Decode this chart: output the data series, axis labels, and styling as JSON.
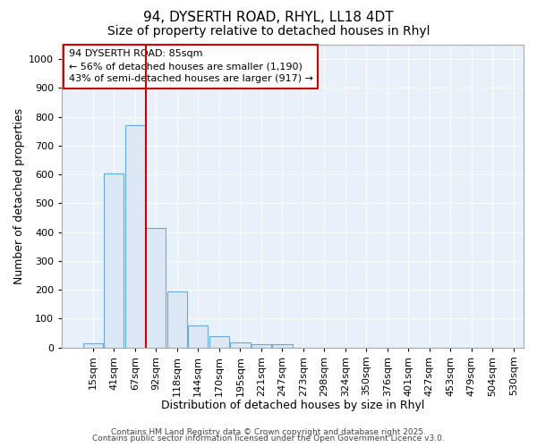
{
  "title1": "94, DYSERTH ROAD, RHYL, LL18 4DT",
  "title2": "Size of property relative to detached houses in Rhyl",
  "xlabel": "Distribution of detached houses by size in Rhyl",
  "ylabel": "Number of detached properties",
  "bin_labels": [
    "15sqm",
    "41sqm",
    "67sqm",
    "92sqm",
    "118sqm",
    "144sqm",
    "170sqm",
    "195sqm",
    "221sqm",
    "247sqm",
    "273sqm",
    "298sqm",
    "324sqm",
    "350sqm",
    "376sqm",
    "401sqm",
    "427sqm",
    "453sqm",
    "479sqm",
    "504sqm",
    "530sqm"
  ],
  "bar_values": [
    15,
    605,
    770,
    415,
    195,
    78,
    40,
    18,
    12,
    12,
    0,
    0,
    0,
    0,
    0,
    0,
    0,
    0,
    0,
    0
  ],
  "bar_color": "#dce8f5",
  "bar_edgecolor": "#6aaad4",
  "vline_color": "#cc0000",
  "annotation_line1": "94 DYSERTH ROAD: 85sqm",
  "annotation_line2": "← 56% of detached houses are smaller (1,190)",
  "annotation_line3": "43% of semi-detached houses are larger (917) →",
  "annotation_box_edgecolor": "#cc0000",
  "ylim": [
    0,
    1050
  ],
  "yticks": [
    0,
    100,
    200,
    300,
    400,
    500,
    600,
    700,
    800,
    900,
    1000
  ],
  "background_color": "#e8f0fa",
  "grid_color": "#ffffff",
  "fig_background": "#ffffff",
  "footer1": "Contains HM Land Registry data © Crown copyright and database right 2025.",
  "footer2": "Contains public sector information licensed under the Open Government Licence v3.0.",
  "title1_fontsize": 11,
  "title2_fontsize": 10,
  "xlabel_fontsize": 9,
  "ylabel_fontsize": 9,
  "tick_fontsize": 8,
  "annotation_fontsize": 8,
  "footer_fontsize": 6.5
}
